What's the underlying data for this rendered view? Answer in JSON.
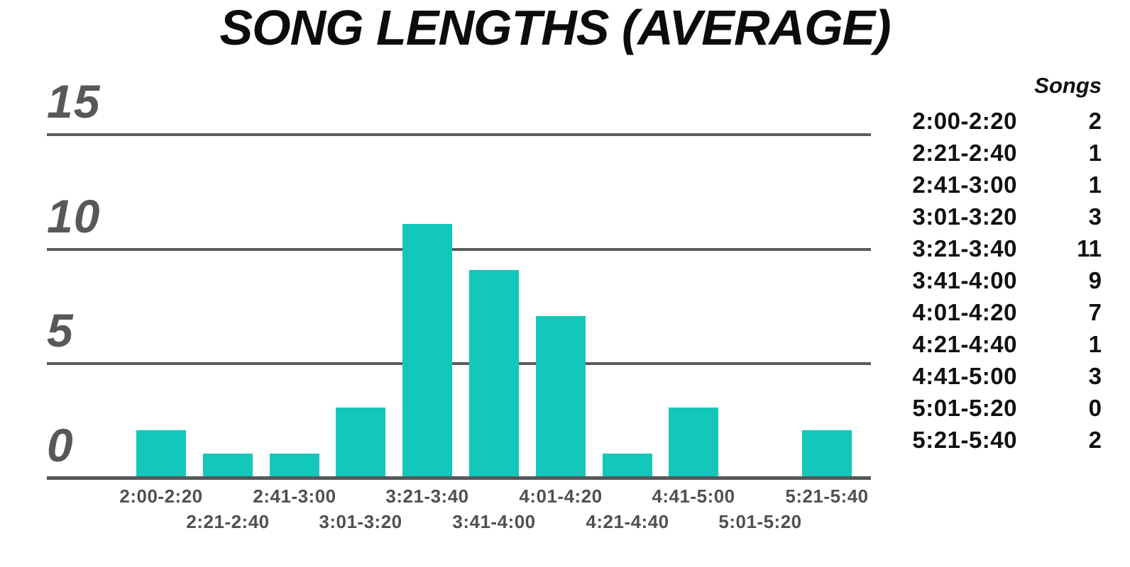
{
  "title": "SONG LENGTHS (AVERAGE)",
  "chart_data": {
    "type": "bar",
    "title": "SONG LENGTHS (AVERAGE)",
    "categories": [
      "2:00-2:20",
      "2:21-2:40",
      "2:41-3:00",
      "3:01-3:20",
      "3:21-3:40",
      "3:41-4:00",
      "4:01-4:20",
      "4:21-4:40",
      "4:41-5:00",
      "5:01-5:20",
      "5:21-5:40"
    ],
    "values": [
      2,
      1,
      1,
      3,
      11,
      9,
      7,
      1,
      3,
      0,
      2
    ],
    "series_name": "Songs",
    "xlabel": "",
    "ylabel": "",
    "ylim": [
      0,
      15
    ],
    "y_ticks": [
      0,
      5,
      10,
      15
    ],
    "grid": true,
    "legend_position": "right",
    "bar_color": "#13c8ba"
  },
  "legend_table": {
    "header": "Songs",
    "rows": [
      {
        "range": "2:00-2:20",
        "count": "2"
      },
      {
        "range": "2:21-2:40",
        "count": "1"
      },
      {
        "range": "2:41-3:00",
        "count": "1"
      },
      {
        "range": "3:01-3:20",
        "count": "3"
      },
      {
        "range": "3:21-3:40",
        "count": "11"
      },
      {
        "range": "3:41-4:00",
        "count": "9"
      },
      {
        "range": "4:01-4:20",
        "count": "7"
      },
      {
        "range": "4:21-4:40",
        "count": "1"
      },
      {
        "range": "4:41-5:00",
        "count": "3"
      },
      {
        "range": "5:01-5:20",
        "count": "0"
      },
      {
        "range": "5:21-5:40",
        "count": "2"
      }
    ]
  },
  "colors": {
    "bar": "#13c8ba",
    "axis": "#55585a",
    "grid": "#5a5c5e",
    "y_label": "#56585a",
    "x_label": "#4e5052",
    "text": "#101010",
    "background": "#ffffff"
  }
}
